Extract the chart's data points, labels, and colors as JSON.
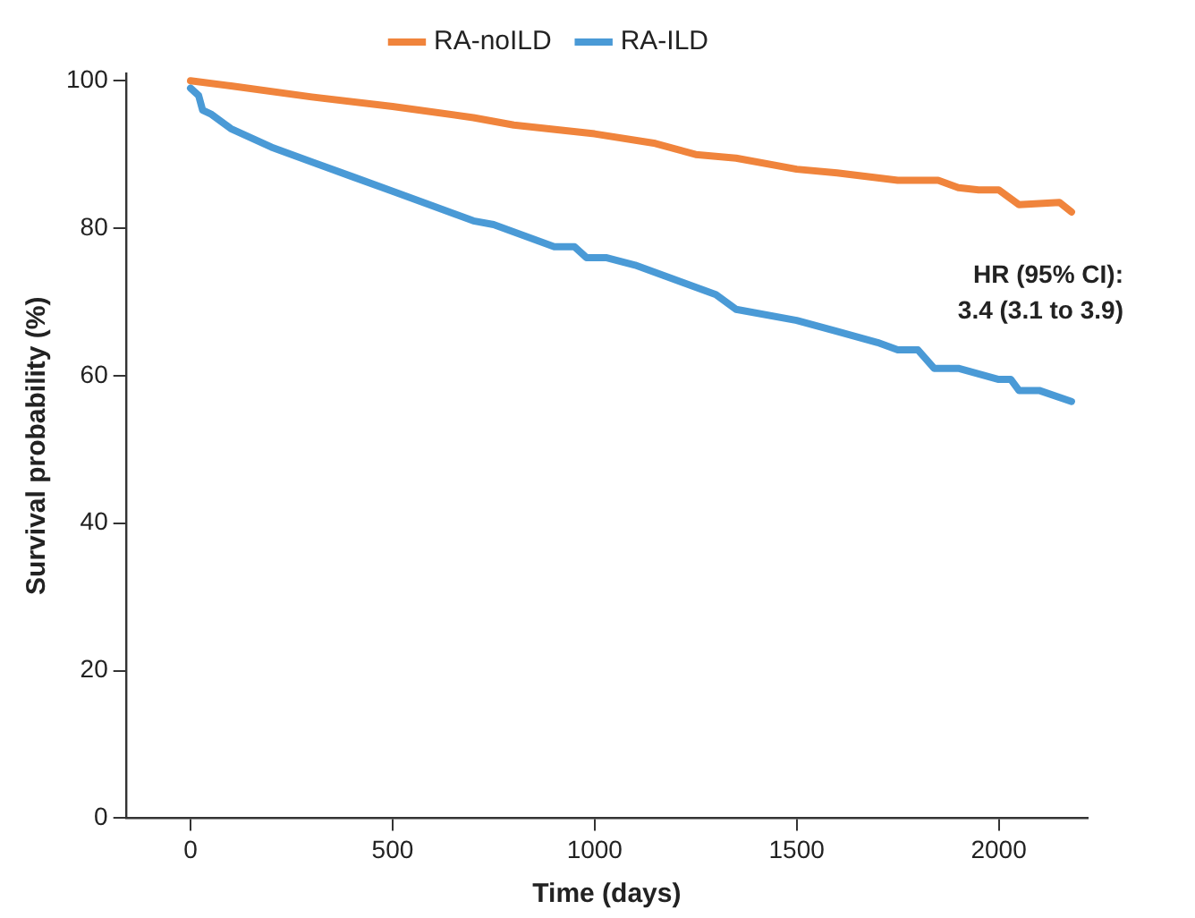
{
  "chart_data": {
    "type": "line",
    "xlabel": "Time (days)",
    "ylabel": "Survival probability (%)",
    "xlim": [
      -160,
      2220
    ],
    "xticks": [
      0,
      500,
      1000,
      1500,
      2000
    ],
    "ylim": [
      0,
      101
    ],
    "yticks": [
      0,
      20,
      40,
      60,
      80,
      100
    ],
    "grid": false,
    "legend": "top",
    "line_style": "solid",
    "annotations": [
      "HR (95% CI):\n3.4 (3.1 to 3.9)"
    ],
    "series": [
      {
        "name": "RA-noILD",
        "color": "#f0843c",
        "x": [
          0,
          100,
          300,
          500,
          700,
          800,
          1000,
          1150,
          1250,
          1350,
          1500,
          1600,
          1750,
          1850,
          1900,
          1950,
          2000,
          2050,
          2150,
          2180
        ],
        "values": [
          100,
          99.3,
          97.8,
          96.5,
          95,
          94,
          92.8,
          91.5,
          90,
          89.5,
          88,
          87.5,
          86.5,
          86.5,
          85.5,
          85.2,
          85.2,
          83.2,
          83.5,
          82.2
        ]
      },
      {
        "name": "RA-ILD",
        "color": "#4a9ad6",
        "x": [
          0,
          20,
          30,
          50,
          100,
          200,
          300,
          400,
          500,
          600,
          700,
          750,
          800,
          900,
          950,
          980,
          1030,
          1100,
          1200,
          1300,
          1350,
          1500,
          1600,
          1700,
          1750,
          1800,
          1840,
          1900,
          2000,
          2030,
          2050,
          2100,
          2180
        ],
        "values": [
          99,
          98,
          96,
          95.5,
          93.5,
          91,
          89,
          87,
          85,
          83,
          81,
          80.5,
          79.5,
          77.5,
          77.5,
          76,
          76,
          75,
          73,
          71,
          69,
          67.5,
          66,
          64.5,
          63.5,
          63.5,
          61,
          61,
          59.5,
          59.5,
          58,
          58,
          56.5
        ]
      }
    ]
  }
}
